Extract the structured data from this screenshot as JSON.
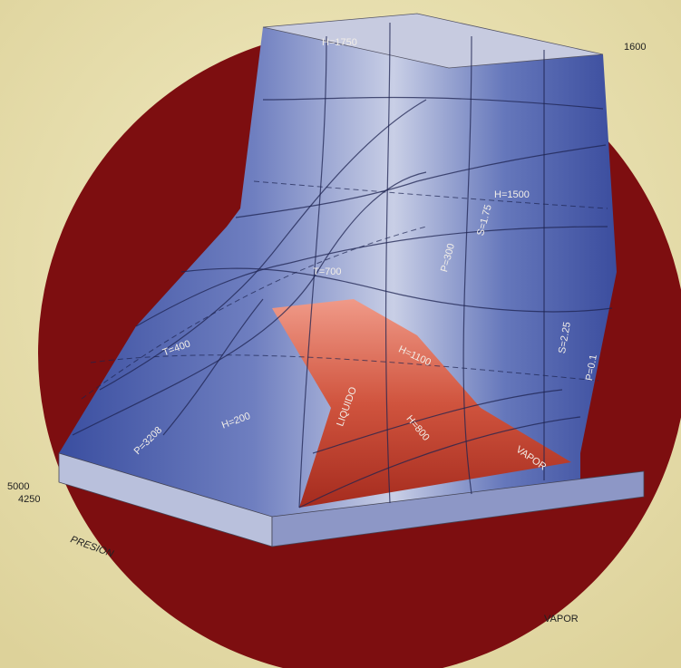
{
  "labels": [
    "H=1750",
    "1600",
    "H=1500",
    "P=300",
    "S=1.75",
    "T=700",
    "H=1100",
    "H=800",
    "LIQUIDO",
    "VAPOR",
    "S=2.25",
    "P=0.1",
    "P=3208",
    "H=200",
    "T=400",
    "5000",
    "4250",
    "PRESION",
    "VAPOR"
  ]
}
